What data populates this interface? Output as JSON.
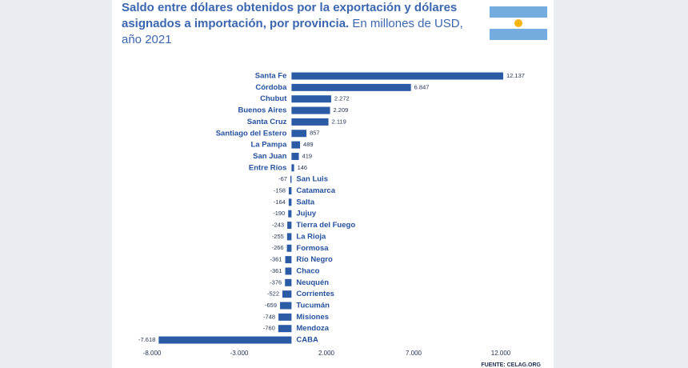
{
  "chart_data": {
    "type": "bar",
    "orientation": "horizontal",
    "title": "Saldo entre dólares obtenidos por la exportación y dólares asignados a importación, por provincia.",
    "subtitle": "En millones de USD, año 2021",
    "source": "FUENTE: CELAG.ORG",
    "categories": [
      "Santa Fe",
      "Córdoba",
      "Chubut",
      "Buenos Aires",
      "Santa Cruz",
      "Santiago del Estero",
      "La Pampa",
      "San Juan",
      "Entre Ríos",
      "San Luis",
      "Catamarca",
      "Salta",
      "Jujuy",
      "Tierra del Fuego",
      "La Rioja",
      "Formosa",
      "Río Negro",
      "Chaco",
      "Neuquén",
      "Corrientes",
      "Tucumán",
      "Misiones",
      "Mendoza",
      "CABA"
    ],
    "values": [
      12137,
      6847,
      2272,
      2209,
      2119,
      857,
      489,
      419,
      146,
      -67,
      -158,
      -164,
      -190,
      -243,
      -255,
      -266,
      -361,
      -361,
      -376,
      -522,
      -659,
      -748,
      -760,
      -7618
    ],
    "value_labels": [
      "12.137",
      "6.847",
      "2.272",
      "2.209",
      "2.119",
      "857",
      "489",
      "419",
      "146",
      "-67",
      "-158",
      "-164",
      "-190",
      "-243",
      "-255",
      "-266",
      "-361",
      "-361",
      "-376",
      "-522",
      "-659",
      "-748",
      "-760",
      "-7.618"
    ],
    "color": "#2c5ba6",
    "xlim": [
      -8000,
      12000
    ],
    "xticks": [
      {
        "value": -8000,
        "label": "-8.000"
      },
      {
        "value": -3000,
        "label": "-3.000"
      },
      {
        "value": 2000,
        "label": "2.000"
      },
      {
        "value": 7000,
        "label": "7.000"
      },
      {
        "value": 12000,
        "label": "12.000"
      }
    ],
    "grid": false
  }
}
